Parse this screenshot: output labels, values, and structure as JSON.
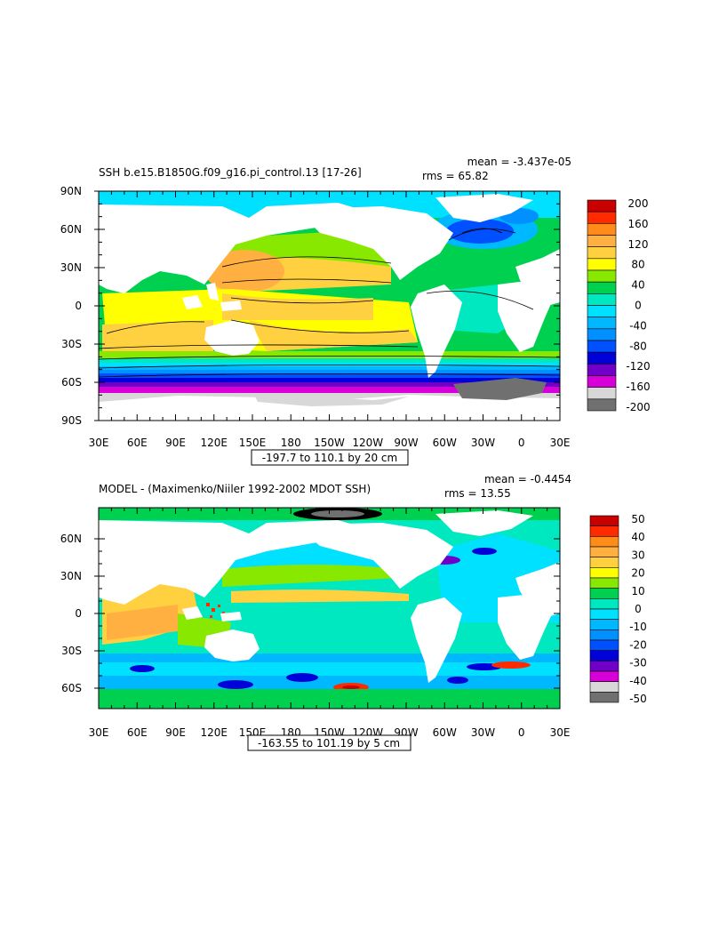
{
  "panels": [
    {
      "title": "SSH b.e15.B1850G.f09_g16.pi_control.13 [17-26]",
      "mean_text": "mean = -3.437e-05",
      "rms_text": "rms = 65.82",
      "range_text": "-197.7 to 110.1 by 20 cm",
      "lat_labels": [
        "90N",
        "60N",
        "30N",
        "0",
        "30S",
        "60S",
        "90S"
      ],
      "lon_labels": [
        "30E",
        "60E",
        "90E",
        "120E",
        "150E",
        "180",
        "150W",
        "120W",
        "90W",
        "60W",
        "30W",
        "0",
        "30E"
      ],
      "colorbar_labels": [
        "200",
        "160",
        "120",
        "80",
        "40",
        "0",
        "-40",
        "-80",
        "-120",
        "-160",
        "-200"
      ],
      "colorbar_colors": [
        "#c80000",
        "#ff2a00",
        "#ff8c1a",
        "#ffb040",
        "#ffd040",
        "#ffff00",
        "#88e800",
        "#00d050",
        "#00e8c0",
        "#00e0ff",
        "#00b8ff",
        "#0090ff",
        "#0050ff",
        "#0000d8",
        "#7000c8",
        "#d800d8",
        "#d8d8d8",
        "#707070"
      ]
    },
    {
      "title": "MODEL - (Maximenko/Niiler 1992-2002 MDOT SSH)",
      "mean_text": "mean = -0.4454",
      "rms_text": "rms = 13.55",
      "range_text": "-163.55 to 101.19 by 5 cm",
      "lat_labels": [
        "60N",
        "30N",
        "0",
        "30S",
        "60S"
      ],
      "lon_labels": [
        "30E",
        "60E",
        "90E",
        "120E",
        "150E",
        "180",
        "150W",
        "120W",
        "90W",
        "60W",
        "30W",
        "0",
        "30E"
      ],
      "colorbar_labels": [
        "50",
        "40",
        "30",
        "20",
        "10",
        "0",
        "-10",
        "-20",
        "-30",
        "-40",
        "-50"
      ],
      "colorbar_colors": [
        "#c80000",
        "#ff2a00",
        "#ff8c1a",
        "#ffb040",
        "#ffd040",
        "#ffff00",
        "#88e800",
        "#00d050",
        "#00e8c0",
        "#00e0ff",
        "#00b8ff",
        "#0090ff",
        "#0050ff",
        "#0000d8",
        "#7000c8",
        "#d800d8",
        "#d8d8d8",
        "#707070"
      ]
    }
  ]
}
